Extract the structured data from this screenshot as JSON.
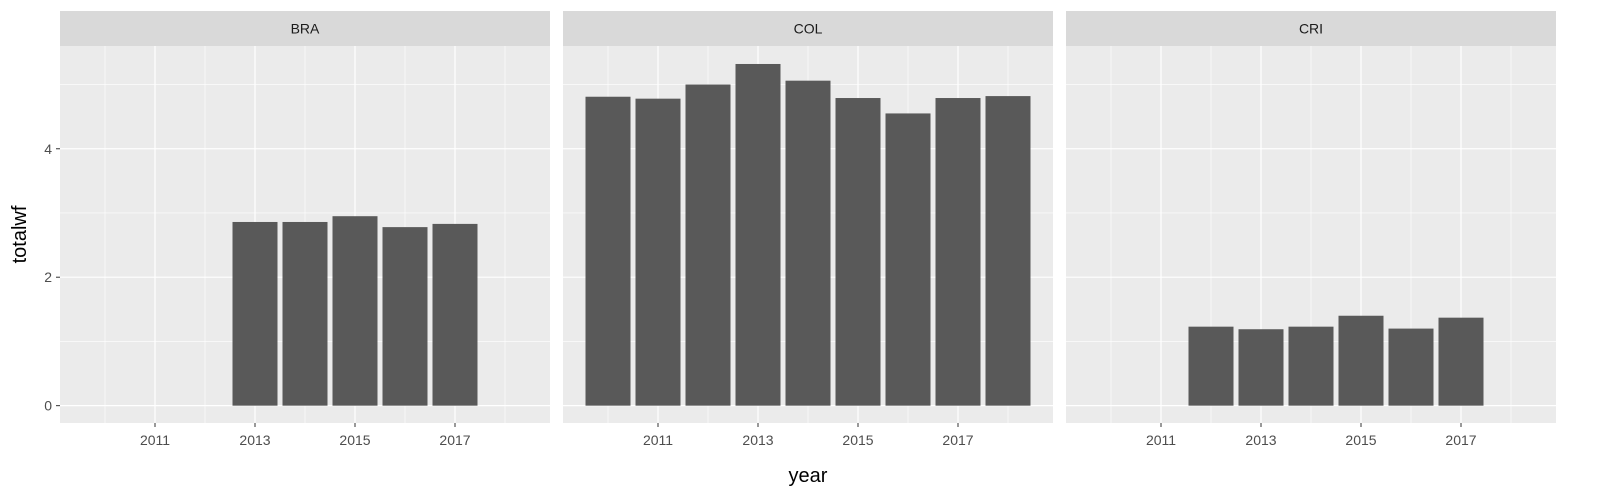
{
  "chart_data": {
    "type": "bar",
    "facet_by": "country",
    "xlabel": "year",
    "ylabel": "totalwf",
    "xlim": [
      2009.1,
      2018.9
    ],
    "ylim": [
      -0.27,
      5.6
    ],
    "x_ticks": [
      2011,
      2013,
      2015,
      2017
    ],
    "y_ticks": [
      0,
      2,
      4
    ],
    "bar_color": "#595959",
    "panel_background": "#ebebeb",
    "strip_background": "#d9d9d9",
    "grid": true,
    "facets": [
      {
        "name": "BRA",
        "x": [
          2013,
          2014,
          2015,
          2016,
          2017
        ],
        "values": [
          2.86,
          2.86,
          2.95,
          2.78,
          2.83
        ]
      },
      {
        "name": "COL",
        "x": [
          2010,
          2011,
          2012,
          2013,
          2014,
          2015,
          2016,
          2017,
          2018
        ],
        "values": [
          4.81,
          4.78,
          5.0,
          5.32,
          5.06,
          4.79,
          4.55,
          4.79,
          4.82
        ]
      },
      {
        "name": "CRI",
        "x": [
          2012,
          2013,
          2014,
          2015,
          2016,
          2017
        ],
        "values": [
          1.23,
          1.19,
          1.23,
          1.4,
          1.2,
          1.37
        ]
      }
    ]
  }
}
